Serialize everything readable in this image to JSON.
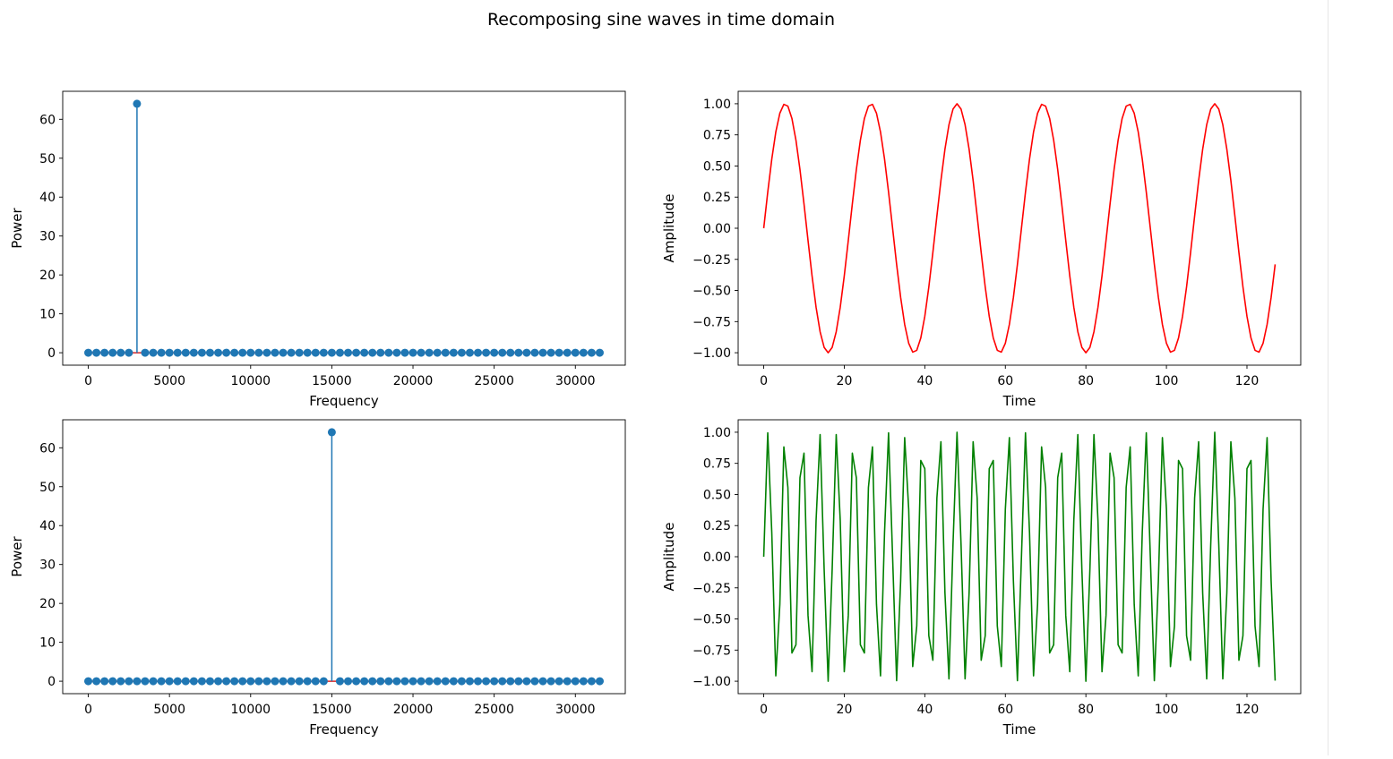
{
  "figure": {
    "title": "Recomposing sine waves in time domain"
  },
  "chart_data": [
    {
      "type": "stem",
      "position": "top-left",
      "xlabel": "Frequency",
      "ylabel": "Power",
      "xlim": [
        -1575,
        33075
      ],
      "ylim": [
        -3.2,
        67.2
      ],
      "xticks": [
        0,
        5000,
        10000,
        15000,
        20000,
        25000,
        30000
      ],
      "yticks": [
        0,
        10,
        20,
        30,
        40,
        50,
        60
      ],
      "color": "#1f77b4",
      "baseline_color": "#d62728",
      "frequencies_start": 0,
      "frequencies_step": 500,
      "frequencies_count": 64,
      "values_note": "all zero except peak",
      "peak": {
        "x": 3000,
        "y": 64
      }
    },
    {
      "type": "line",
      "position": "top-right",
      "xlabel": "Time",
      "ylabel": "Amplitude",
      "xlim": [
        -6.35,
        133.35
      ],
      "ylim": [
        -1.1,
        1.1
      ],
      "xticks": [
        0,
        20,
        40,
        60,
        80,
        100,
        120
      ],
      "yticks": [
        "1.00",
        "0.75",
        "0.50",
        "0.25",
        "0.00",
        "−0.25",
        "−0.50",
        "−0.75",
        "−1.00"
      ],
      "color": "#ff0000",
      "samples": 128,
      "function": "sin",
      "cycles_per_128_samples": 6
    },
    {
      "type": "stem",
      "position": "bottom-left",
      "xlabel": "Frequency",
      "ylabel": "Power",
      "xlim": [
        -1575,
        33075
      ],
      "ylim": [
        -3.2,
        67.2
      ],
      "xticks": [
        0,
        5000,
        10000,
        15000,
        20000,
        25000,
        30000
      ],
      "yticks": [
        0,
        10,
        20,
        30,
        40,
        50,
        60
      ],
      "color": "#1f77b4",
      "baseline_color": "#d62728",
      "frequencies_start": 0,
      "frequencies_step": 500,
      "frequencies_count": 64,
      "values_note": "all zero except peak",
      "peak": {
        "x": 15000,
        "y": 64
      }
    },
    {
      "type": "line",
      "position": "bottom-right",
      "xlabel": "Time",
      "ylabel": "Amplitude",
      "xlim": [
        -6.35,
        133.35
      ],
      "ylim": [
        -1.1,
        1.1
      ],
      "xticks": [
        0,
        20,
        40,
        60,
        80,
        100,
        120
      ],
      "yticks": [
        "1.00",
        "0.75",
        "0.50",
        "0.25",
        "0.00",
        "−0.25",
        "−0.50",
        "−0.75",
        "−1.00"
      ],
      "color": "#008000",
      "samples": 128,
      "function": "sin",
      "cycles_per_128_samples": 30
    }
  ]
}
